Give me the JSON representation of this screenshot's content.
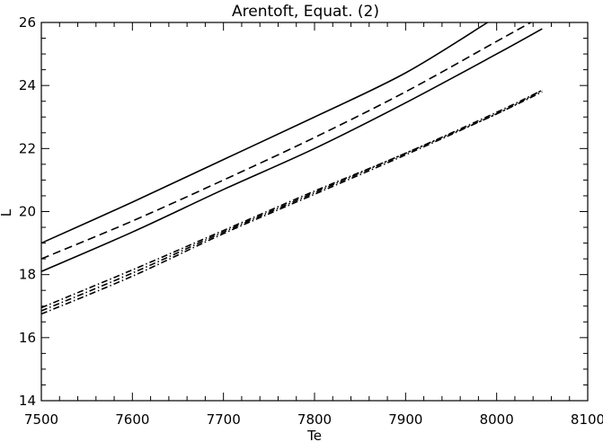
{
  "chart_data": {
    "type": "line",
    "title": "Arentoft, Equat. (2)",
    "xlabel": "Te",
    "ylabel": "L",
    "xlim": [
      7500,
      8100
    ],
    "ylim": [
      14,
      26
    ],
    "x_ticks": [
      7500,
      7600,
      7700,
      7800,
      7900,
      8000,
      8100
    ],
    "y_ticks": [
      14,
      16,
      18,
      20,
      22,
      24,
      26
    ],
    "grid": false,
    "series": [
      {
        "line_style": "solid",
        "x": [
          7500,
          7600,
          7700,
          7800,
          7900,
          7990
        ],
        "y": [
          19.0,
          20.3,
          21.65,
          23.0,
          24.4,
          26.0
        ]
      },
      {
        "line_style": "dashed",
        "x": [
          7500,
          7600,
          7700,
          7800,
          7900,
          8000,
          8050
        ],
        "y": [
          18.5,
          19.7,
          21.0,
          22.35,
          23.8,
          25.4,
          26.2
        ]
      },
      {
        "line_style": "solid",
        "x": [
          7500,
          7600,
          7700,
          7800,
          7900,
          8000,
          8050
        ],
        "y": [
          18.1,
          19.35,
          20.7,
          22.0,
          23.45,
          25.0,
          25.8
        ]
      },
      {
        "line_style": "dash-dot",
        "x": [
          7500,
          7600,
          7700,
          7800,
          7900,
          8000,
          8050
        ],
        "y": [
          16.95,
          18.15,
          19.4,
          20.65,
          21.85,
          23.15,
          23.85
        ]
      },
      {
        "line_style": "dash-dot",
        "x": [
          7500,
          7600,
          7700,
          7800,
          7900,
          8000,
          8050
        ],
        "y": [
          16.85,
          18.05,
          19.35,
          20.6,
          21.85,
          23.1,
          23.85
        ]
      },
      {
        "line_style": "dash-dot",
        "x": [
          7500,
          7600,
          7700,
          7800,
          7900,
          8000,
          8050
        ],
        "y": [
          16.75,
          17.95,
          19.3,
          20.55,
          21.8,
          23.1,
          23.8
        ]
      }
    ]
  }
}
